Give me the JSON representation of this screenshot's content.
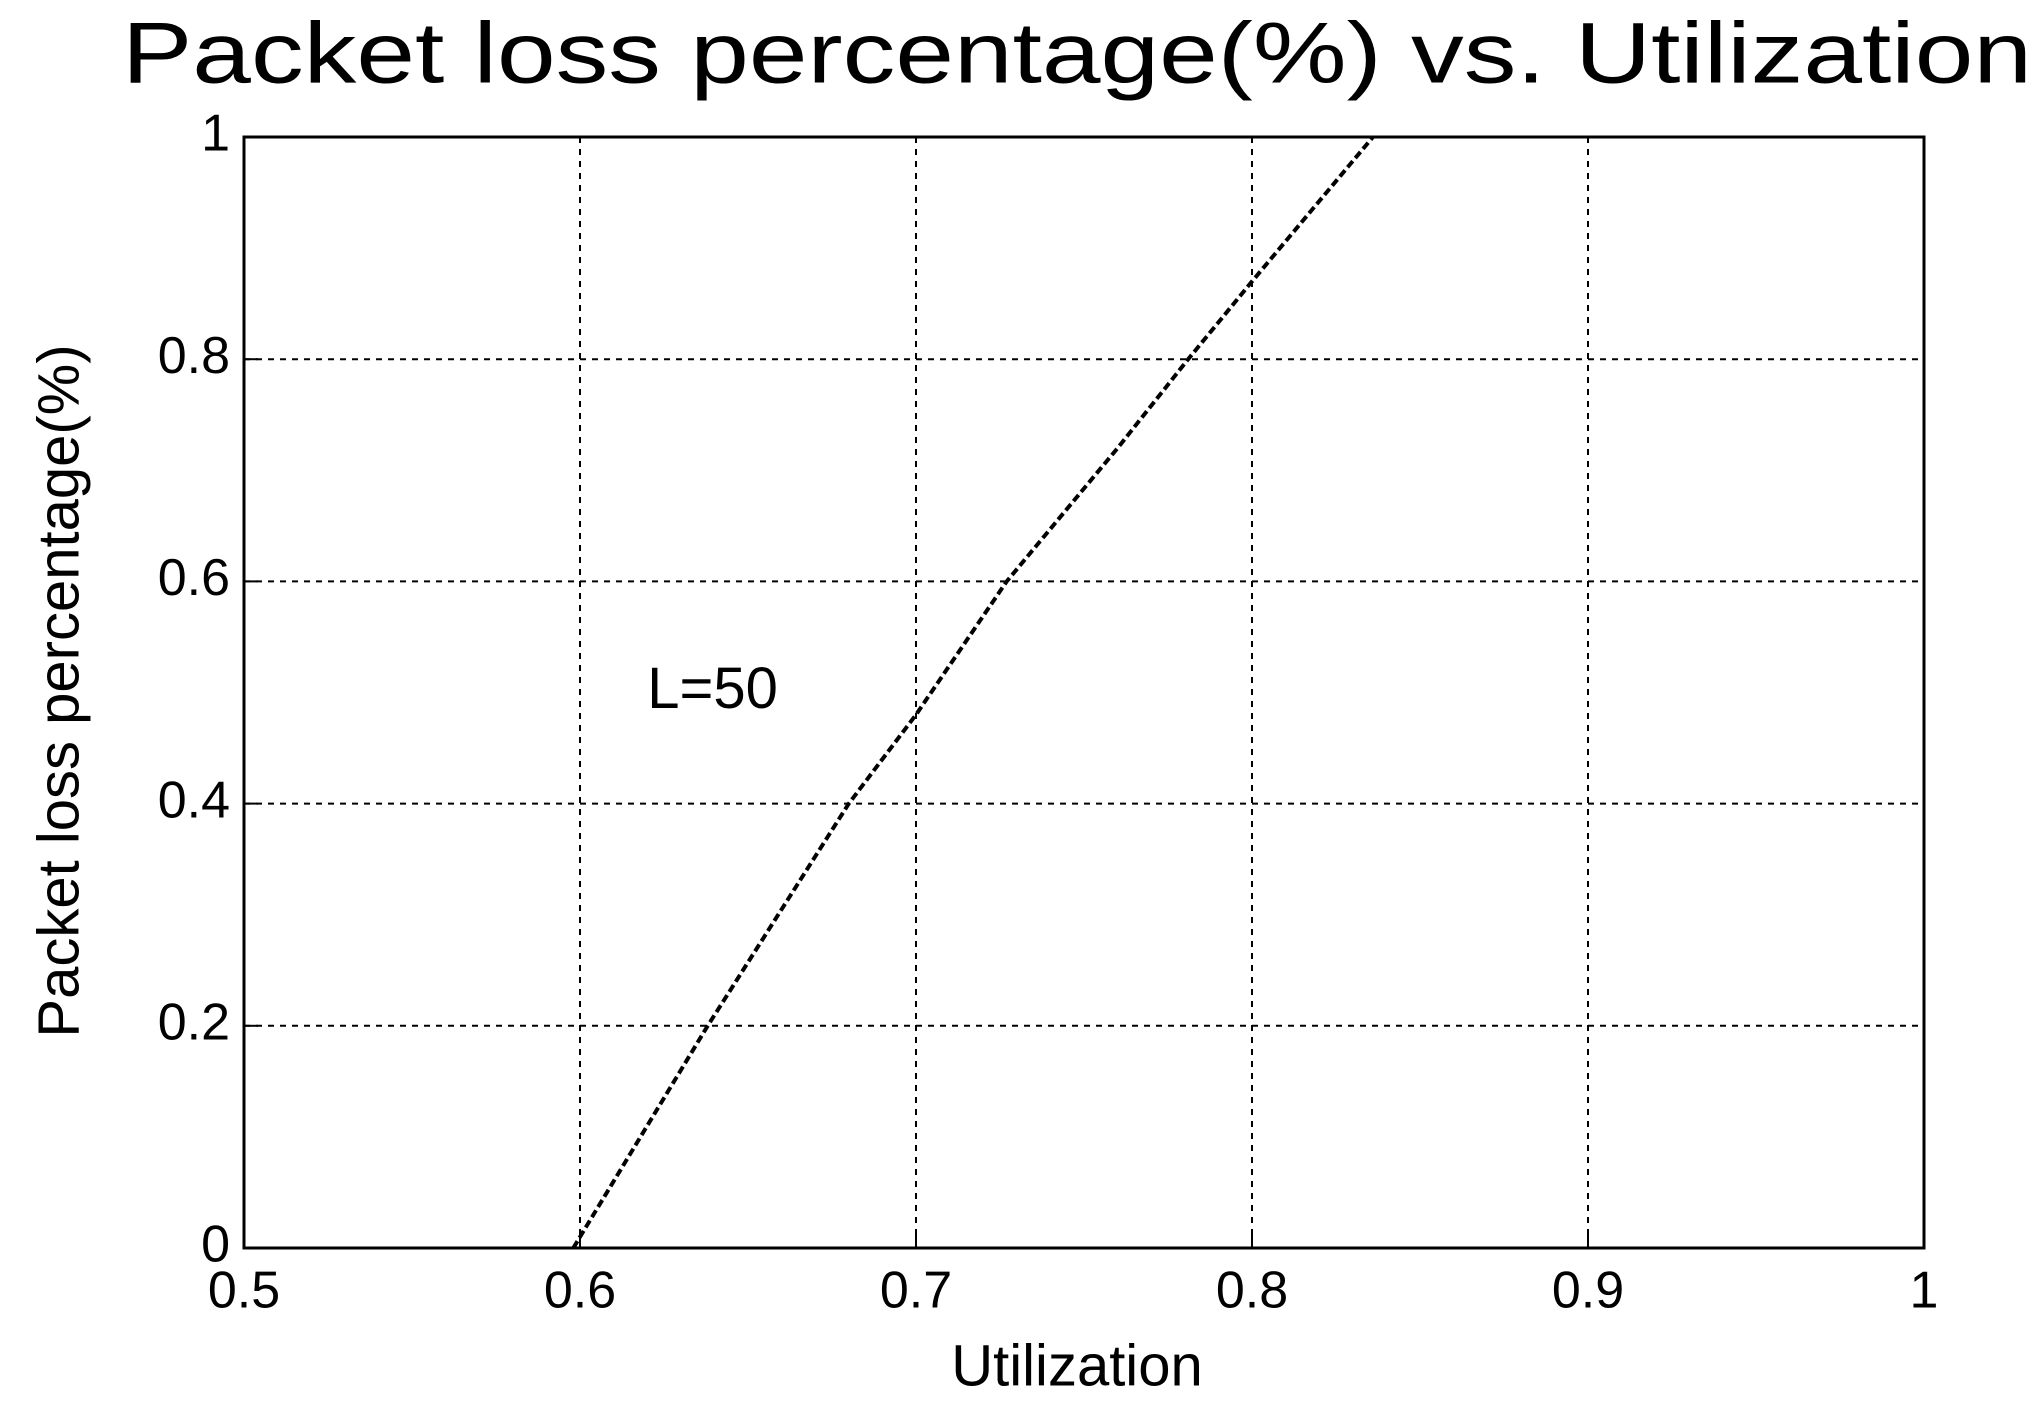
{
  "chart_data": {
    "type": "line",
    "title": "Packet loss percentage(%) vs. Utilization",
    "x_label": "Utilization",
    "y_label": "Packet loss percentage(%)",
    "annotation": {
      "text": "L=50",
      "x": 0.62,
      "y": 0.5
    },
    "x": [
      0.598,
      0.638,
      0.68,
      0.7,
      0.727,
      0.76,
      0.781,
      0.8,
      0.836
    ],
    "values": [
      0,
      0.2,
      0.4,
      0.48,
      0.6,
      0.72,
      0.8,
      0.87,
      1
    ],
    "color": "#000000",
    "xlim": [
      0.5,
      1
    ],
    "xticks": [
      0.5,
      0.6,
      0.7,
      0.8,
      0.9,
      1
    ],
    "ylim": [
      0,
      1
    ],
    "yticks": [
      0,
      0.2,
      0.4,
      0.6,
      0.8,
      1
    ],
    "grid": true
  }
}
